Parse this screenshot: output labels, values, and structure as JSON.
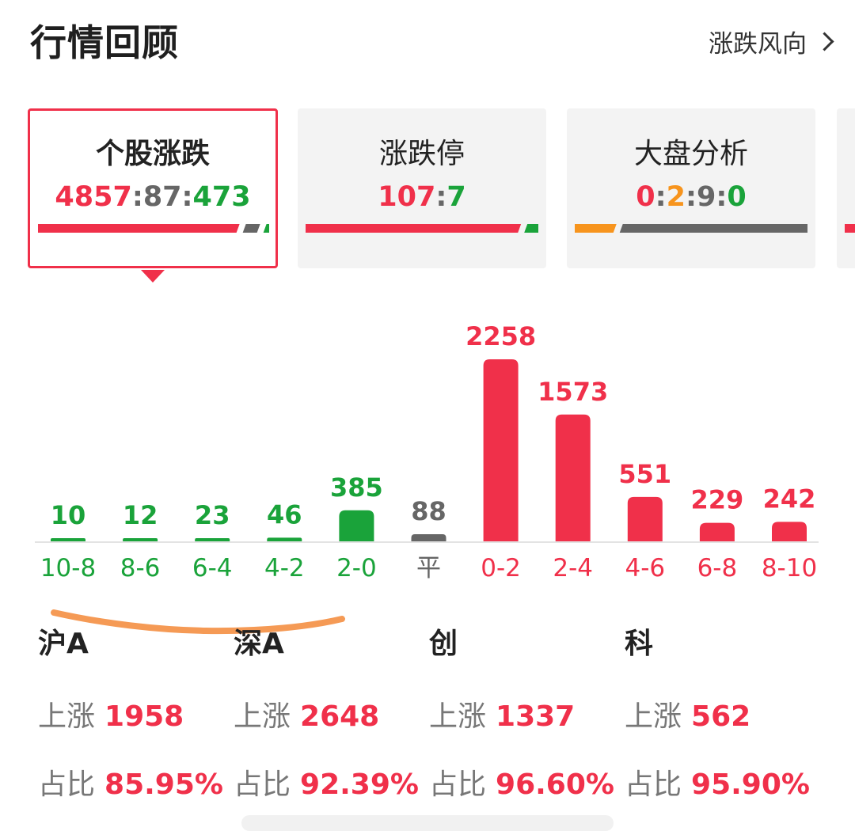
{
  "header": {
    "title": "行情回顾",
    "trend_link": "涨跌风向"
  },
  "cards": [
    {
      "title": "个股涨跌",
      "ratio": [
        {
          "text": "4857",
          "color": "#f0304a"
        },
        {
          "text": ":",
          "color": "#666666"
        },
        {
          "text": "87",
          "color": "#666666"
        },
        {
          "text": ":",
          "color": "#666666"
        },
        {
          "text": "473",
          "color": "#1aa33a"
        }
      ],
      "bar": [
        {
          "value": 4857,
          "color": "#f0304a"
        },
        {
          "value": 87,
          "color": "#666666"
        },
        {
          "value": 473,
          "color": "#1aa33a"
        }
      ]
    },
    {
      "title": "涨跌停",
      "ratio": [
        {
          "text": "107",
          "color": "#f0304a"
        },
        {
          "text": ":",
          "color": "#666666"
        },
        {
          "text": "7",
          "color": "#1aa33a"
        }
      ],
      "bar": [
        {
          "value": 107,
          "color": "#f0304a"
        },
        {
          "value": 7,
          "color": "#1aa33a"
        }
      ]
    },
    {
      "title": "大盘分析",
      "ratio": [
        {
          "text": "0",
          "color": "#f0304a"
        },
        {
          "text": ":",
          "color": "#666666"
        },
        {
          "text": "2",
          "color": "#f7941d"
        },
        {
          "text": ":",
          "color": "#666666"
        },
        {
          "text": "9",
          "color": "#666666"
        },
        {
          "text": ":",
          "color": "#666666"
        },
        {
          "text": "0",
          "color": "#1aa33a"
        }
      ],
      "bar": [
        {
          "value": 2,
          "color": "#f7941d"
        },
        {
          "value": 9,
          "color": "#666666"
        }
      ]
    }
  ],
  "colors": {
    "up": "#f0304a",
    "down": "#1aa33a",
    "flat": "#666666",
    "orange": "#f7941d"
  },
  "chart_data": {
    "type": "bar",
    "categories": [
      "10-8",
      "8-6",
      "6-4",
      "4-2",
      "2-0",
      "平",
      "0-2",
      "2-4",
      "4-6",
      "6-8",
      "8-10"
    ],
    "values": [
      10,
      12,
      23,
      46,
      385,
      88,
      2258,
      1573,
      551,
      229,
      242
    ],
    "value_labels": [
      "10",
      "12",
      "23",
      "46",
      "385",
      "88",
      "2258",
      "1573",
      "551",
      "229",
      "242"
    ],
    "colors": [
      "#1aa33a",
      "#1aa33a",
      "#1aa33a",
      "#1aa33a",
      "#1aa33a",
      "#666666",
      "#f0304a",
      "#f0304a",
      "#f0304a",
      "#f0304a",
      "#f0304a"
    ],
    "ylim": [
      0,
      2258
    ]
  },
  "markets": [
    {
      "name": "沪A",
      "up_label": "上涨",
      "up_value": "1958",
      "ratio_label": "占比",
      "ratio_value": "85.95%"
    },
    {
      "name": "深A",
      "up_label": "上涨",
      "up_value": "2648",
      "ratio_label": "占比",
      "ratio_value": "92.39%"
    },
    {
      "name": "创",
      "up_label": "上涨",
      "up_value": "1337",
      "ratio_label": "占比",
      "ratio_value": "96.60%"
    },
    {
      "name": "科",
      "up_label": "上涨",
      "up_value": "562",
      "ratio_label": "占比",
      "ratio_value": "95.90%"
    }
  ]
}
